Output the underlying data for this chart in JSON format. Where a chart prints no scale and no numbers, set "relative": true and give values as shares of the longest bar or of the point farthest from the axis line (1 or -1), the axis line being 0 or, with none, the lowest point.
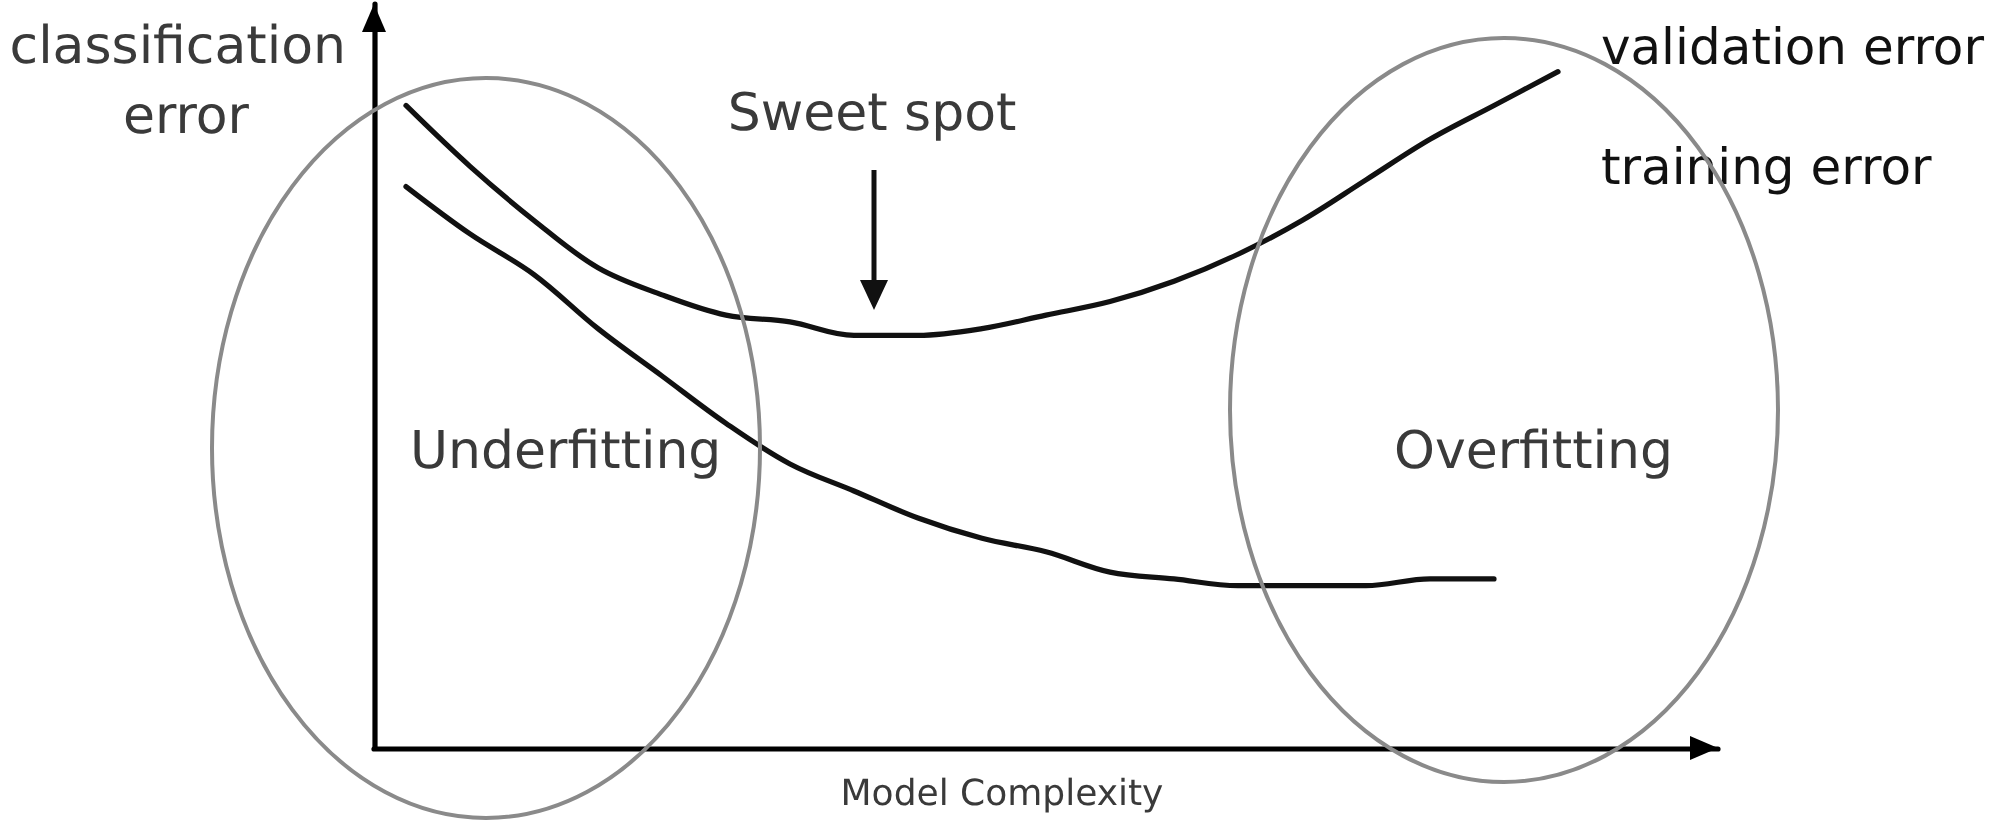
{
  "chart_data": {
    "type": "line",
    "relative": true,
    "ylabel": "classification error",
    "xlabel": "Model Complexity",
    "categories": [
      null,
      null,
      null,
      null,
      null,
      null,
      null,
      null,
      null,
      null,
      null,
      null,
      null,
      null,
      null,
      null,
      null,
      null,
      null,
      null,
      null
    ],
    "series": [
      {
        "name": "validation error",
        "color": "#111111",
        "values": [
          0.95,
          0.86,
          0.78,
          0.71,
          0.67,
          0.64,
          0.63,
          0.61,
          0.61,
          0.62,
          0.64,
          0.66,
          0.69,
          0.73,
          0.78,
          0.84,
          0.9,
          0.95,
          1,
          null,
          null
        ]
      },
      {
        "name": "training error",
        "color": "#111111",
        "values": [
          0.83,
          0.76,
          0.7,
          0.62,
          0.55,
          0.48,
          0.42,
          0.38,
          0.34,
          0.31,
          0.29,
          0.26,
          0.25,
          0.24,
          0.24,
          0.24,
          0.25,
          0.25,
          null,
          null,
          null
        ]
      }
    ],
    "annotations": [
      "Sweet spot",
      "Underfitting",
      "Overfitting"
    ],
    "legend": "top right",
    "marker": "none",
    "line_style": "solid"
  }
}
